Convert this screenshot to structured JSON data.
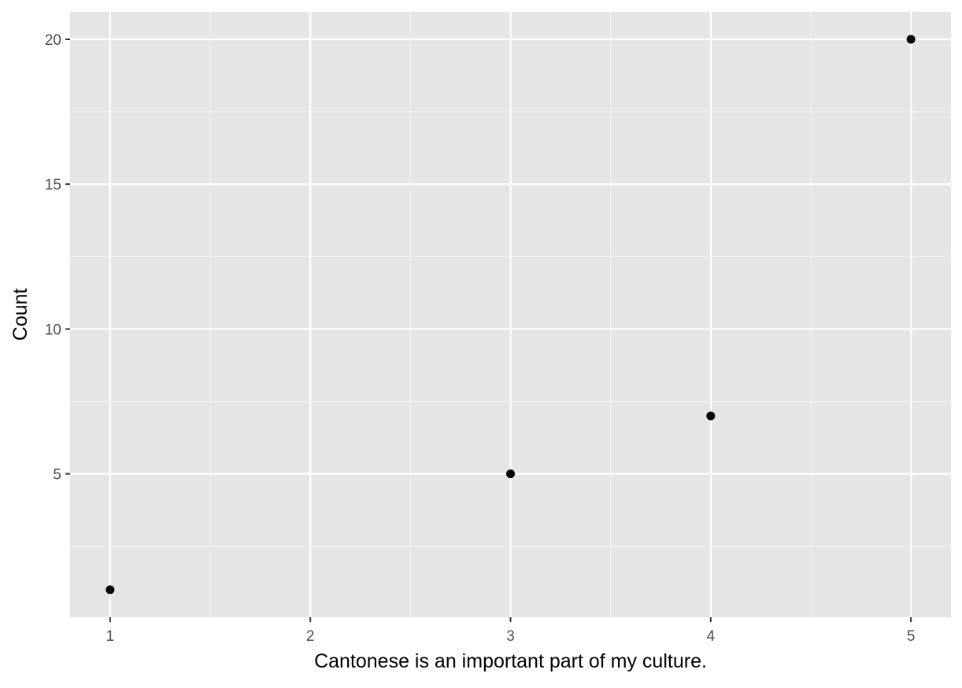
{
  "chart_data": {
    "type": "scatter",
    "xlabel": "Cantonese is an important part of my culture.",
    "ylabel": "Count",
    "xlim": [
      0.8,
      5.2
    ],
    "ylim": [
      0.05,
      20.95
    ],
    "x_ticks": [
      1,
      2,
      3,
      4,
      5
    ],
    "y_ticks": [
      5,
      10,
      15,
      20
    ],
    "x_minor_grid": [
      1.5,
      2.5,
      3.5,
      4.5
    ],
    "y_minor_grid": [
      2.5,
      7.5,
      12.5,
      17.5
    ],
    "grid": true,
    "legend": "none",
    "points": [
      {
        "x": 1,
        "y": 1
      },
      {
        "x": 3,
        "y": 5
      },
      {
        "x": 4,
        "y": 7
      },
      {
        "x": 5,
        "y": 20
      }
    ],
    "colors": {
      "panel_background": "#e5e5e5",
      "grid_major": "#ffffff",
      "grid_minor": "#f2f2f2",
      "point": "#000000",
      "tick_label": "#4d4d4d",
      "tick_mark": "#333333",
      "axis_title": "#000000"
    }
  }
}
